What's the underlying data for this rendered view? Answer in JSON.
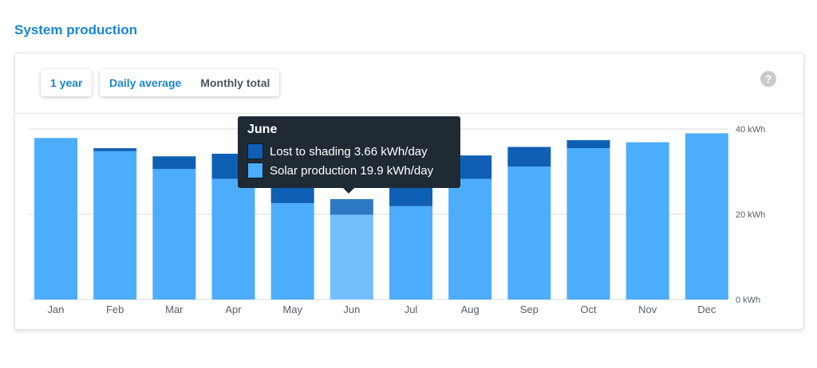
{
  "page": {
    "section_title": "System production"
  },
  "controls": {
    "range_label": "1 year",
    "daily_label": "Daily average",
    "monthly_label": "Monthly total",
    "help_label": "?"
  },
  "colors": {
    "production": "#4dadfd",
    "production_hover": "#73bffc",
    "shading": "#0f60b5",
    "shading_hover": "#2e79c4",
    "grid": "#e3e6e9",
    "axis_text": "#555f69"
  },
  "tooltip": {
    "title": "June",
    "shading_label": "Lost to shading 3.66 kWh/day",
    "production_label": "Solar production 19.9 kWh/day"
  },
  "chart_data": {
    "type": "bar",
    "stacked": true,
    "categories": [
      "Jan",
      "Feb",
      "Mar",
      "Apr",
      "May",
      "Jun",
      "Jul",
      "Aug",
      "Sep",
      "Oct",
      "Nov",
      "Dec"
    ],
    "series": [
      {
        "name": "Solar production",
        "values": [
          37.9,
          34.8,
          30.6,
          28.3,
          22.6,
          19.9,
          21.9,
          28.3,
          31.2,
          35.5,
          36.9,
          39.0
        ]
      },
      {
        "name": "Lost to shading",
        "values": [
          0,
          0.7,
          3.0,
          5.9,
          9.9,
          3.66,
          7.5,
          5.5,
          4.6,
          1.9,
          0,
          0
        ]
      }
    ],
    "y_ticks": [
      "0 kWh",
      "20 kWh",
      "40 kWh"
    ],
    "ylim": [
      0,
      40
    ],
    "highlighted": "Jun",
    "grid": true
  }
}
